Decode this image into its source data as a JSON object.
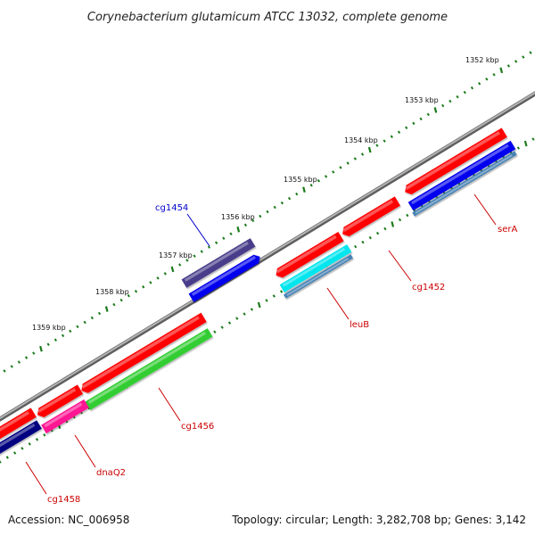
{
  "title": "Corynebacterium glutamicum ATCC 13032, complete genome",
  "footer": {
    "accession": "Accession: NC_006958",
    "summary": "Topology: circular; Length: 3,282,708 bp; Genes: 3,142"
  },
  "colors": {
    "backbone": "#8a8a8a",
    "tick": "#1a7a1a",
    "label_red": "#cc0000",
    "label_blue": "#0000cc",
    "cds": "#ff0000",
    "blue": "#0000ee",
    "navy": "#000080",
    "slate": "#4682b4",
    "purple": "#483d8b",
    "cyan": "#00e5ee",
    "magenta": "#ff1493",
    "green": "#32cd32"
  },
  "ruler": {
    "labels": [
      "1352 kbp",
      "1353 kbp",
      "1354 kbp",
      "1355 kbp",
      "1356 kbp",
      "1357 kbp",
      "1358 kbp",
      "1359 kbp"
    ]
  },
  "gene_labels": [
    {
      "name": "cg1454",
      "color": "blue"
    },
    {
      "name": "serA",
      "color": "red"
    },
    {
      "name": "cg1452",
      "color": "red"
    },
    {
      "name": "leuB",
      "color": "red"
    },
    {
      "name": "cg1456",
      "color": "red"
    },
    {
      "name": "dnaQ2",
      "color": "red"
    },
    {
      "name": "cg1458",
      "color": "red"
    }
  ]
}
